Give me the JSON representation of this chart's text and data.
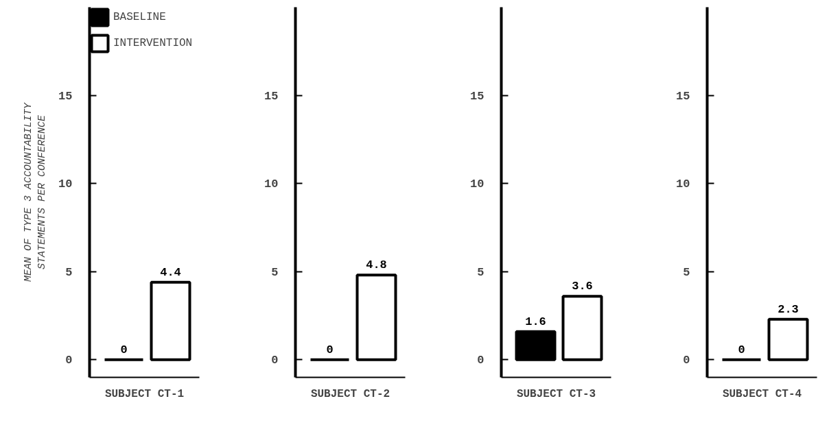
{
  "chart_data": [
    {
      "type": "bar",
      "categories": [
        null
      ],
      "xlabel": "SUBJECT CT-1",
      "ylabel": "MEAN OF TYPE 3 ACCOUNTABILITY\nSTATEMENTS PER CONFERENCE",
      "ylim": [
        -1,
        20
      ],
      "yticks": [
        0,
        5,
        10,
        15
      ],
      "data_labels": true,
      "legend": "top left",
      "grid": false,
      "series": [
        {
          "name": "BASELINE",
          "color": "#000000",
          "values": [
            0
          ]
        },
        {
          "name": "INTERVENTION",
          "color": "#ffffff",
          "values": [
            4.4
          ]
        }
      ]
    },
    {
      "type": "bar",
      "categories": [
        null
      ],
      "xlabel": "SUBJECT CT-2",
      "ylim": [
        -1,
        20
      ],
      "yticks": [
        0,
        5,
        10,
        15
      ],
      "data_labels": true,
      "grid": false,
      "series": [
        {
          "color": "#000000",
          "values": [
            0
          ]
        },
        {
          "color": "#ffffff",
          "values": [
            4.8
          ]
        }
      ]
    },
    {
      "type": "bar",
      "categories": [
        null
      ],
      "xlabel": "SUBJECT CT-3",
      "ylim": [
        -1,
        20
      ],
      "yticks": [
        0,
        5,
        10,
        15
      ],
      "data_labels": true,
      "grid": false,
      "series": [
        {
          "color": "#000000",
          "values": [
            1.6
          ]
        },
        {
          "color": "#ffffff",
          "values": [
            3.6
          ]
        }
      ]
    },
    {
      "type": "bar",
      "categories": [
        null
      ],
      "xlabel": "SUBJECT CT-4",
      "ylim": [
        -1,
        20
      ],
      "yticks": [
        0,
        5,
        10,
        15
      ],
      "data_labels": true,
      "grid": false,
      "series": [
        {
          "color": "#000000",
          "values": [
            0
          ]
        },
        {
          "color": "#ffffff",
          "values": [
            2.3
          ]
        }
      ]
    }
  ]
}
